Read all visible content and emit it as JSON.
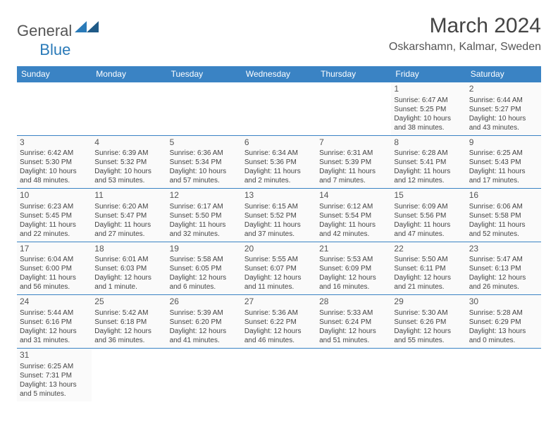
{
  "logo": {
    "part1": "General",
    "part2": "Blue"
  },
  "title": "March 2024",
  "location": "Oskarshamn, Kalmar, Sweden",
  "day_headers": [
    "Sunday",
    "Monday",
    "Tuesday",
    "Wednesday",
    "Thursday",
    "Friday",
    "Saturday"
  ],
  "colors": {
    "header_bg": "#3a83c4",
    "header_text": "#ffffff",
    "cell_border": "#3a83c4",
    "logo_blue": "#2a7ab8",
    "text": "#444444"
  },
  "weeks": [
    [
      null,
      null,
      null,
      null,
      null,
      {
        "n": "1",
        "sr": "Sunrise: 6:47 AM",
        "ss": "Sunset: 5:25 PM",
        "d1": "Daylight: 10 hours",
        "d2": "and 38 minutes."
      },
      {
        "n": "2",
        "sr": "Sunrise: 6:44 AM",
        "ss": "Sunset: 5:27 PM",
        "d1": "Daylight: 10 hours",
        "d2": "and 43 minutes."
      }
    ],
    [
      {
        "n": "3",
        "sr": "Sunrise: 6:42 AM",
        "ss": "Sunset: 5:30 PM",
        "d1": "Daylight: 10 hours",
        "d2": "and 48 minutes."
      },
      {
        "n": "4",
        "sr": "Sunrise: 6:39 AM",
        "ss": "Sunset: 5:32 PM",
        "d1": "Daylight: 10 hours",
        "d2": "and 53 minutes."
      },
      {
        "n": "5",
        "sr": "Sunrise: 6:36 AM",
        "ss": "Sunset: 5:34 PM",
        "d1": "Daylight: 10 hours",
        "d2": "and 57 minutes."
      },
      {
        "n": "6",
        "sr": "Sunrise: 6:34 AM",
        "ss": "Sunset: 5:36 PM",
        "d1": "Daylight: 11 hours",
        "d2": "and 2 minutes."
      },
      {
        "n": "7",
        "sr": "Sunrise: 6:31 AM",
        "ss": "Sunset: 5:39 PM",
        "d1": "Daylight: 11 hours",
        "d2": "and 7 minutes."
      },
      {
        "n": "8",
        "sr": "Sunrise: 6:28 AM",
        "ss": "Sunset: 5:41 PM",
        "d1": "Daylight: 11 hours",
        "d2": "and 12 minutes."
      },
      {
        "n": "9",
        "sr": "Sunrise: 6:25 AM",
        "ss": "Sunset: 5:43 PM",
        "d1": "Daylight: 11 hours",
        "d2": "and 17 minutes."
      }
    ],
    [
      {
        "n": "10",
        "sr": "Sunrise: 6:23 AM",
        "ss": "Sunset: 5:45 PM",
        "d1": "Daylight: 11 hours",
        "d2": "and 22 minutes."
      },
      {
        "n": "11",
        "sr": "Sunrise: 6:20 AM",
        "ss": "Sunset: 5:47 PM",
        "d1": "Daylight: 11 hours",
        "d2": "and 27 minutes."
      },
      {
        "n": "12",
        "sr": "Sunrise: 6:17 AM",
        "ss": "Sunset: 5:50 PM",
        "d1": "Daylight: 11 hours",
        "d2": "and 32 minutes."
      },
      {
        "n": "13",
        "sr": "Sunrise: 6:15 AM",
        "ss": "Sunset: 5:52 PM",
        "d1": "Daylight: 11 hours",
        "d2": "and 37 minutes."
      },
      {
        "n": "14",
        "sr": "Sunrise: 6:12 AM",
        "ss": "Sunset: 5:54 PM",
        "d1": "Daylight: 11 hours",
        "d2": "and 42 minutes."
      },
      {
        "n": "15",
        "sr": "Sunrise: 6:09 AM",
        "ss": "Sunset: 5:56 PM",
        "d1": "Daylight: 11 hours",
        "d2": "and 47 minutes."
      },
      {
        "n": "16",
        "sr": "Sunrise: 6:06 AM",
        "ss": "Sunset: 5:58 PM",
        "d1": "Daylight: 11 hours",
        "d2": "and 52 minutes."
      }
    ],
    [
      {
        "n": "17",
        "sr": "Sunrise: 6:04 AM",
        "ss": "Sunset: 6:00 PM",
        "d1": "Daylight: 11 hours",
        "d2": "and 56 minutes."
      },
      {
        "n": "18",
        "sr": "Sunrise: 6:01 AM",
        "ss": "Sunset: 6:03 PM",
        "d1": "Daylight: 12 hours",
        "d2": "and 1 minute."
      },
      {
        "n": "19",
        "sr": "Sunrise: 5:58 AM",
        "ss": "Sunset: 6:05 PM",
        "d1": "Daylight: 12 hours",
        "d2": "and 6 minutes."
      },
      {
        "n": "20",
        "sr": "Sunrise: 5:55 AM",
        "ss": "Sunset: 6:07 PM",
        "d1": "Daylight: 12 hours",
        "d2": "and 11 minutes."
      },
      {
        "n": "21",
        "sr": "Sunrise: 5:53 AM",
        "ss": "Sunset: 6:09 PM",
        "d1": "Daylight: 12 hours",
        "d2": "and 16 minutes."
      },
      {
        "n": "22",
        "sr": "Sunrise: 5:50 AM",
        "ss": "Sunset: 6:11 PM",
        "d1": "Daylight: 12 hours",
        "d2": "and 21 minutes."
      },
      {
        "n": "23",
        "sr": "Sunrise: 5:47 AM",
        "ss": "Sunset: 6:13 PM",
        "d1": "Daylight: 12 hours",
        "d2": "and 26 minutes."
      }
    ],
    [
      {
        "n": "24",
        "sr": "Sunrise: 5:44 AM",
        "ss": "Sunset: 6:16 PM",
        "d1": "Daylight: 12 hours",
        "d2": "and 31 minutes."
      },
      {
        "n": "25",
        "sr": "Sunrise: 5:42 AM",
        "ss": "Sunset: 6:18 PM",
        "d1": "Daylight: 12 hours",
        "d2": "and 36 minutes."
      },
      {
        "n": "26",
        "sr": "Sunrise: 5:39 AM",
        "ss": "Sunset: 6:20 PM",
        "d1": "Daylight: 12 hours",
        "d2": "and 41 minutes."
      },
      {
        "n": "27",
        "sr": "Sunrise: 5:36 AM",
        "ss": "Sunset: 6:22 PM",
        "d1": "Daylight: 12 hours",
        "d2": "and 46 minutes."
      },
      {
        "n": "28",
        "sr": "Sunrise: 5:33 AM",
        "ss": "Sunset: 6:24 PM",
        "d1": "Daylight: 12 hours",
        "d2": "and 51 minutes."
      },
      {
        "n": "29",
        "sr": "Sunrise: 5:30 AM",
        "ss": "Sunset: 6:26 PM",
        "d1": "Daylight: 12 hours",
        "d2": "and 55 minutes."
      },
      {
        "n": "30",
        "sr": "Sunrise: 5:28 AM",
        "ss": "Sunset: 6:29 PM",
        "d1": "Daylight: 13 hours",
        "d2": "and 0 minutes."
      }
    ],
    [
      {
        "n": "31",
        "sr": "Sunrise: 6:25 AM",
        "ss": "Sunset: 7:31 PM",
        "d1": "Daylight: 13 hours",
        "d2": "and 5 minutes."
      },
      null,
      null,
      null,
      null,
      null,
      null
    ]
  ]
}
